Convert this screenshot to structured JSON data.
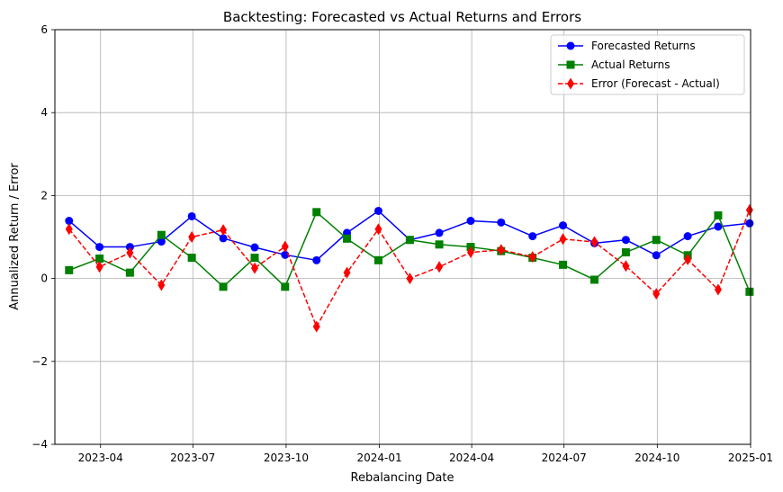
{
  "chart_data": {
    "type": "line",
    "title": "Backtesting: Forecasted vs Actual Returns and Errors",
    "xlabel": "Rebalancing Date",
    "ylabel": "Annualized Return / Error",
    "x_axis_type": "date",
    "xlim": [
      "2023-02-15",
      "2025-01-01"
    ],
    "ylim": [
      -4,
      6
    ],
    "grid": true,
    "legend_position": "top-right",
    "x_ticks": [
      {
        "date": "2023-04-01",
        "label": "2023-04"
      },
      {
        "date": "2023-07-01",
        "label": "2023-07"
      },
      {
        "date": "2023-10-01",
        "label": "2023-10"
      },
      {
        "date": "2024-01-01",
        "label": "2024-01"
      },
      {
        "date": "2024-04-01",
        "label": "2024-04"
      },
      {
        "date": "2024-07-01",
        "label": "2024-07"
      },
      {
        "date": "2024-10-01",
        "label": "2024-10"
      },
      {
        "date": "2025-01-01",
        "label": "2025-01"
      }
    ],
    "y_ticks": [
      {
        "value": -4,
        "label": "−4"
      },
      {
        "value": -2,
        "label": "−2"
      },
      {
        "value": 0,
        "label": "0"
      },
      {
        "value": 2,
        "label": "2"
      },
      {
        "value": 4,
        "label": "4"
      },
      {
        "value": 6,
        "label": "6"
      }
    ],
    "x": [
      "2023-03-01",
      "2023-03-31",
      "2023-04-30",
      "2023-05-31",
      "2023-06-30",
      "2023-07-31",
      "2023-08-31",
      "2023-09-30",
      "2023-10-31",
      "2023-11-30",
      "2023-12-31",
      "2024-01-31",
      "2024-02-29",
      "2024-03-31",
      "2024-04-30",
      "2024-05-31",
      "2024-06-30",
      "2024-07-31",
      "2024-08-31",
      "2024-09-30",
      "2024-10-31",
      "2024-11-30",
      "2024-12-31"
    ],
    "series": [
      {
        "name": "Forecasted Returns",
        "color": "#0000ff",
        "line_style": "solid",
        "marker": "circle",
        "values": [
          1.39,
          0.76,
          0.76,
          0.89,
          1.5,
          0.97,
          0.75,
          0.57,
          0.44,
          1.1,
          1.63,
          0.93,
          1.1,
          1.39,
          1.35,
          1.02,
          1.28,
          0.85,
          0.93,
          0.56,
          1.02,
          1.25,
          1.33
        ]
      },
      {
        "name": "Actual Returns",
        "color": "#008000",
        "line_style": "solid",
        "marker": "square",
        "values": [
          0.2,
          0.48,
          0.14,
          1.05,
          0.5,
          -0.2,
          0.5,
          -0.2,
          1.6,
          0.96,
          0.44,
          0.93,
          0.82,
          0.76,
          0.66,
          0.5,
          0.33,
          -0.03,
          0.63,
          0.93,
          0.56,
          1.52,
          -0.32
        ]
      },
      {
        "name": "Error (Forecast - Actual)",
        "color": "#ff0000",
        "line_style": "dashed",
        "marker": "diamond",
        "values": [
          1.19,
          0.28,
          0.62,
          -0.16,
          1.0,
          1.17,
          0.25,
          0.77,
          -1.16,
          0.14,
          1.19,
          0.0,
          0.28,
          0.63,
          0.69,
          0.52,
          0.95,
          0.88,
          0.3,
          -0.37,
          0.46,
          -0.27,
          1.65
        ]
      }
    ]
  }
}
